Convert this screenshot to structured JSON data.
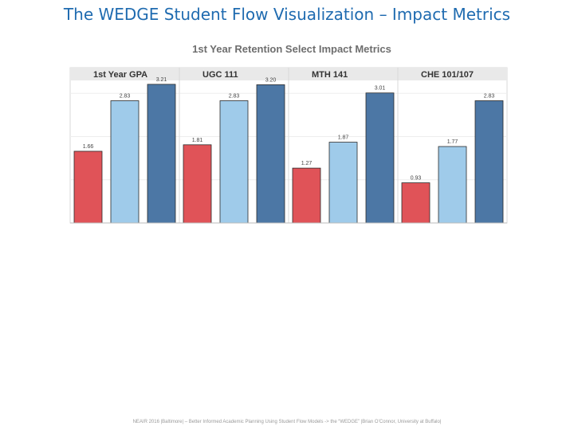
{
  "slide": {
    "title": "The WEDGE Student Flow Visualization – Impact Metrics",
    "footer": "NEAIR 2016 |Baltimore| – Better Informed Academic Planning Using Student Flow Models -> the “WEDGE” |Brian O’Connor, University at Buffalo|"
  },
  "colors": {
    "red": "#e05358",
    "light_blue": "#9fcbea",
    "dark_blue": "#4c77a5",
    "title_blue": "#1f6bb0",
    "panel_header": "#e9e9e9"
  },
  "chart_data": {
    "type": "bar",
    "title": "1st Year Retention Select Impact Metrics",
    "categories": [
      "1st Year GPA",
      "UGC 111",
      "MTH 141",
      "CHE 101/107"
    ],
    "series": [
      {
        "values": [
          1.66,
          1.81,
          1.27,
          0.93
        ]
      },
      {
        "values": [
          2.83,
          2.83,
          1.87,
          1.77
        ]
      },
      {
        "values": [
          3.21,
          3.2,
          3.01,
          2.83
        ]
      }
    ],
    "value_labels": [
      [
        "1.66",
        "2.83",
        "3.21"
      ],
      [
        "1.81",
        "2.83",
        "3.20"
      ],
      [
        "1.27",
        "1.87",
        "3.01"
      ],
      [
        "0.93",
        "1.77",
        "2.83"
      ]
    ],
    "ylim": [
      0,
      3.3
    ],
    "grid": true,
    "legend": "none"
  }
}
